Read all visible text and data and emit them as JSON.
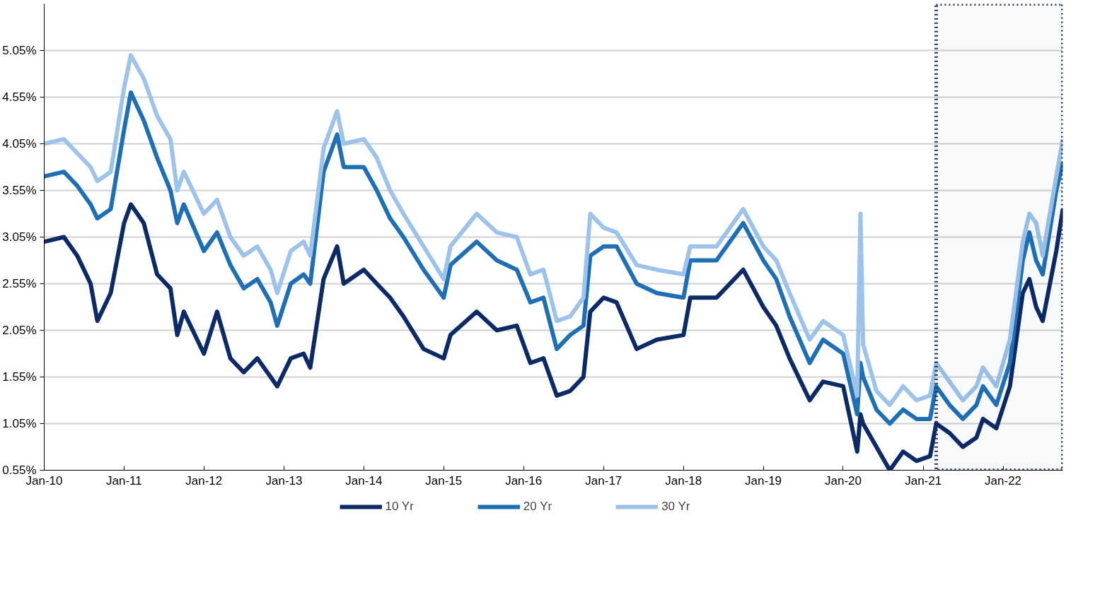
{
  "chart_data": {
    "type": "line",
    "x": [
      "2010-01",
      "2010-04",
      "2010-06",
      "2010-08",
      "2010-09",
      "2010-11",
      "2011-01",
      "2011-02",
      "2011-04",
      "2011-06",
      "2011-08",
      "2011-09",
      "2011-10",
      "2012-01",
      "2012-03",
      "2012-05",
      "2012-07",
      "2012-09",
      "2012-11",
      "2012-12",
      "2013-02",
      "2013-04",
      "2013-05",
      "2013-07",
      "2013-09",
      "2013-10",
      "2014-01",
      "2014-03",
      "2014-05",
      "2014-07",
      "2014-10",
      "2015-01",
      "2015-02",
      "2015-06",
      "2015-09",
      "2015-12",
      "2016-02",
      "2016-04",
      "2016-06",
      "2016-08",
      "2016-10",
      "2016-11",
      "2017-01",
      "2017-03",
      "2017-06",
      "2017-09",
      "2018-01",
      "2018-02",
      "2018-06",
      "2018-10",
      "2019-01",
      "2019-03",
      "2019-05",
      "2019-08",
      "2019-10",
      "2020-01",
      "2020-03-05",
      "2020-03-20",
      "2020-04",
      "2020-06",
      "2020-08",
      "2020-10",
      "2020-12",
      "2021-02",
      "2021-03",
      "2021-05",
      "2021-07",
      "2021-09",
      "2021-10",
      "2021-12",
      "2022-02",
      "2022-04",
      "2022-05",
      "2022-06",
      "2022-07",
      "2022-09",
      "2022-10"
    ],
    "series": [
      {
        "name": "10 Yr",
        "color": "#0b2a66",
        "values": [
          3.0,
          3.05,
          2.85,
          2.55,
          2.15,
          2.45,
          3.2,
          3.4,
          3.2,
          2.65,
          2.5,
          2.0,
          2.25,
          1.8,
          2.25,
          1.75,
          1.6,
          1.75,
          1.55,
          1.45,
          1.75,
          1.8,
          1.65,
          2.6,
          2.95,
          2.55,
          2.7,
          2.55,
          2.4,
          2.2,
          1.85,
          1.75,
          2.0,
          2.25,
          2.05,
          2.1,
          1.7,
          1.75,
          1.35,
          1.4,
          1.55,
          2.25,
          2.4,
          2.35,
          1.85,
          1.95,
          2.0,
          2.4,
          2.4,
          2.7,
          2.3,
          2.1,
          1.75,
          1.3,
          1.5,
          1.45,
          0.75,
          1.15,
          1.05,
          0.8,
          0.55,
          0.75,
          0.65,
          0.7,
          1.05,
          0.95,
          0.8,
          0.9,
          1.1,
          1.0,
          1.45,
          2.45,
          2.6,
          2.3,
          2.15,
          2.9,
          3.35
        ]
      },
      {
        "name": "20 Yr",
        "color": "#1f6fb5",
        "values": [
          3.7,
          3.75,
          3.6,
          3.4,
          3.25,
          3.35,
          4.2,
          4.6,
          4.3,
          3.9,
          3.55,
          3.2,
          3.4,
          2.9,
          3.1,
          2.75,
          2.5,
          2.6,
          2.35,
          2.1,
          2.55,
          2.65,
          2.55,
          3.75,
          4.15,
          3.8,
          3.8,
          3.55,
          3.25,
          3.05,
          2.7,
          2.4,
          2.75,
          3.0,
          2.8,
          2.7,
          2.35,
          2.4,
          1.85,
          2.0,
          2.1,
          2.85,
          2.95,
          2.95,
          2.55,
          2.45,
          2.4,
          2.8,
          2.8,
          3.2,
          2.8,
          2.6,
          2.2,
          1.7,
          1.95,
          1.8,
          1.15,
          1.7,
          1.55,
          1.2,
          1.05,
          1.2,
          1.1,
          1.1,
          1.45,
          1.25,
          1.1,
          1.25,
          1.45,
          1.25,
          1.7,
          2.8,
          3.1,
          2.8,
          2.65,
          3.55,
          3.85
        ]
      },
      {
        "name": "30 Yr",
        "color": "#9dc3ea",
        "values": [
          4.05,
          4.1,
          3.95,
          3.8,
          3.65,
          3.75,
          4.65,
          5.0,
          4.75,
          4.35,
          4.1,
          3.55,
          3.75,
          3.3,
          3.45,
          3.05,
          2.85,
          2.95,
          2.7,
          2.45,
          2.9,
          3.0,
          2.85,
          4.0,
          4.4,
          4.05,
          4.1,
          3.9,
          3.55,
          3.3,
          2.95,
          2.6,
          2.95,
          3.3,
          3.1,
          3.05,
          2.65,
          2.7,
          2.15,
          2.2,
          2.4,
          3.3,
          3.15,
          3.1,
          2.75,
          2.7,
          2.65,
          2.95,
          2.95,
          3.35,
          2.95,
          2.8,
          2.45,
          1.95,
          2.15,
          2.0,
          1.35,
          3.3,
          1.9,
          1.4,
          1.25,
          1.45,
          1.3,
          1.35,
          1.7,
          1.5,
          1.3,
          1.45,
          1.65,
          1.45,
          1.95,
          3.0,
          3.3,
          3.2,
          2.85,
          3.7,
          4.1
        ]
      }
    ],
    "xlim": [
      "2010-01",
      "2022-10"
    ],
    "xticks": [
      {
        "value": "2010-01",
        "label": "Jan-10"
      },
      {
        "value": "2011-01",
        "label": "Jan-11"
      },
      {
        "value": "2012-01",
        "label": "Jan-12"
      },
      {
        "value": "2013-01",
        "label": "Jan-13"
      },
      {
        "value": "2014-01",
        "label": "Jan-14"
      },
      {
        "value": "2015-01",
        "label": "Jan-15"
      },
      {
        "value": "2016-01",
        "label": "Jan-16"
      },
      {
        "value": "2017-01",
        "label": "Jan-17"
      },
      {
        "value": "2018-01",
        "label": "Jan-18"
      },
      {
        "value": "2019-01",
        "label": "Jan-19"
      },
      {
        "value": "2020-01",
        "label": "Jan-20"
      },
      {
        "value": "2021-01",
        "label": "Jan-21"
      },
      {
        "value": "2022-01",
        "label": "Jan-22"
      }
    ],
    "ylim": [
      0.55,
      5.55
    ],
    "yticks": [
      {
        "value": 0.55,
        "label": "0.55%"
      },
      {
        "value": 1.05,
        "label": "1.05%"
      },
      {
        "value": 1.55,
        "label": "1.55%"
      },
      {
        "value": 2.05,
        "label": "2.05%"
      },
      {
        "value": 2.55,
        "label": "2.55%"
      },
      {
        "value": 3.05,
        "label": "3.05%"
      },
      {
        "value": 3.55,
        "label": "3.55%"
      },
      {
        "value": 4.05,
        "label": "4.05%"
      },
      {
        "value": 4.55,
        "label": "4.55%"
      },
      {
        "value": 5.05,
        "label": "5.05%"
      }
    ],
    "bands": [
      {
        "axis": "x",
        "from": "2021-03",
        "to": "2022-10",
        "color": "#1f3864"
      }
    ],
    "grid": "y",
    "legend": "bottom",
    "marker": "none",
    "line_style": "solid"
  }
}
